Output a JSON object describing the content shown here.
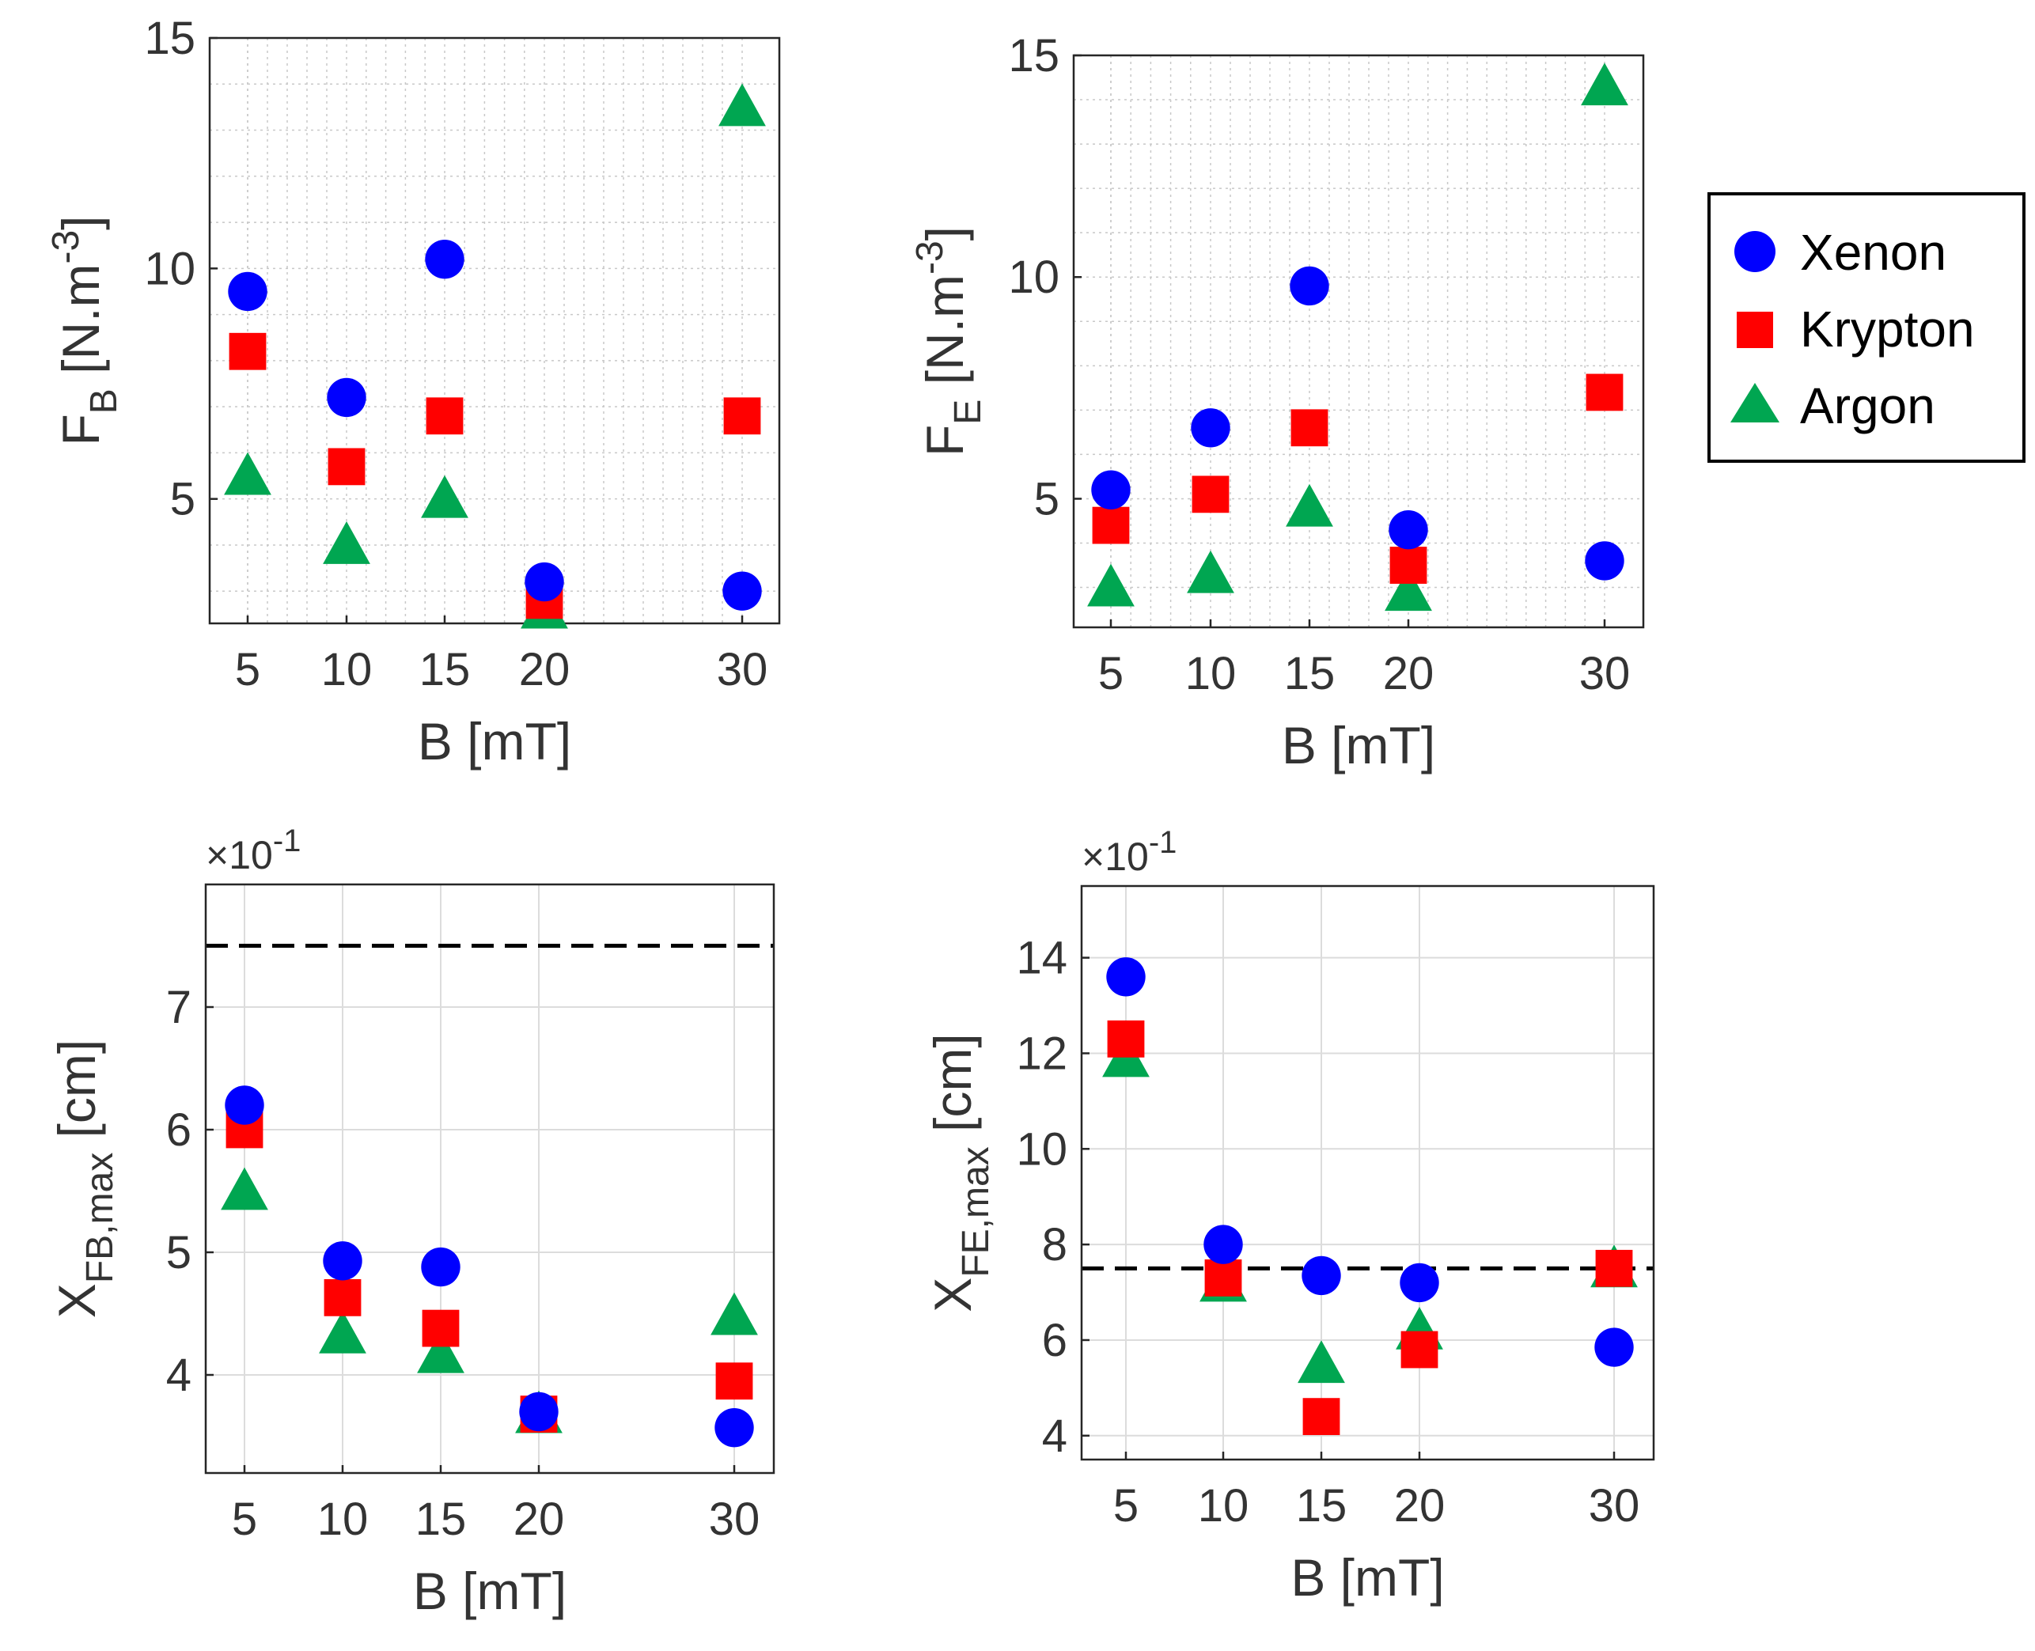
{
  "legend": {
    "entries": [
      {
        "name": "Xenon",
        "color": "#0000ff",
        "marker": "circle"
      },
      {
        "name": "Krypton",
        "color": "#ff0000",
        "marker": "square"
      },
      {
        "name": "Argon",
        "color": "#00a651",
        "marker": "triangle"
      }
    ],
    "placement": "right"
  },
  "chart_data": [
    {
      "type": "scatter",
      "position": "top-left",
      "xlabel": "B [mT]",
      "ylabel": {
        "main": "F",
        "sub": "B",
        "rest": " [N.m",
        "sup": "-3",
        "close": "]"
      },
      "exponent": "",
      "x_ticks": [
        5,
        10,
        15,
        20,
        30
      ],
      "x_tick_labels": [
        "5",
        "10",
        "15",
        "20",
        "30"
      ],
      "y_ticks": [
        5,
        10,
        15
      ],
      "y_tick_labels": [
        "5",
        "10",
        "15"
      ],
      "xlim": [
        3,
        31
      ],
      "ylim": [
        2.3,
        15
      ],
      "grid": "minor-dotted",
      "reference_line": null,
      "series": [
        {
          "name": "Xenon",
          "x": [
            5,
            10,
            15,
            20,
            30
          ],
          "y": [
            9.5,
            7.2,
            10.2,
            3.2,
            3.0
          ]
        },
        {
          "name": "Krypton",
          "x": [
            5,
            10,
            15,
            20,
            30
          ],
          "y": [
            8.2,
            5.7,
            6.8,
            2.8,
            6.8
          ]
        },
        {
          "name": "Argon",
          "x": [
            5,
            10,
            15,
            20,
            30
          ],
          "y": [
            5.5,
            4.0,
            5.0,
            2.6,
            13.5
          ]
        }
      ]
    },
    {
      "type": "scatter",
      "position": "top-right",
      "xlabel": "B [mT]",
      "ylabel": {
        "main": "F",
        "sub": "E",
        "rest": " [N.m",
        "sup": "-3",
        "close": "]"
      },
      "exponent": "",
      "x_ticks": [
        5,
        10,
        15,
        20,
        30
      ],
      "x_tick_labels": [
        "5",
        "10",
        "15",
        "20",
        "30"
      ],
      "y_ticks": [
        5,
        10,
        15
      ],
      "y_tick_labels": [
        "5",
        "10",
        "15"
      ],
      "xlim": [
        3,
        31
      ],
      "ylim": [
        2.1,
        15
      ],
      "grid": "minor-dotted",
      "reference_line": null,
      "series": [
        {
          "name": "Xenon",
          "x": [
            5,
            10,
            15,
            20,
            30
          ],
          "y": [
            5.2,
            6.6,
            9.8,
            4.3,
            3.6
          ]
        },
        {
          "name": "Krypton",
          "x": [
            5,
            10,
            15,
            20,
            30
          ],
          "y": [
            4.4,
            5.1,
            6.6,
            3.5,
            7.4
          ]
        },
        {
          "name": "Argon",
          "x": [
            5,
            10,
            15,
            20,
            30
          ],
          "y": [
            3.0,
            3.3,
            4.8,
            2.9,
            14.3
          ]
        }
      ]
    },
    {
      "type": "scatter",
      "position": "bottom-left",
      "xlabel": "B [mT]",
      "ylabel": {
        "main": "X",
        "sub": "FB,max",
        "rest": " [cm]",
        "sup": "",
        "close": ""
      },
      "exponent": "10",
      "exponent_prefix": "×",
      "exponent_power": "-1",
      "x_ticks": [
        5,
        10,
        15,
        20,
        30
      ],
      "x_tick_labels": [
        "5",
        "10",
        "15",
        "20",
        "30"
      ],
      "y_ticks": [
        4,
        5,
        6,
        7
      ],
      "y_tick_labels": [
        "4",
        "5",
        "6",
        "7"
      ],
      "xlim": [
        3,
        31
      ],
      "ylim": [
        3.2,
        8.0
      ],
      "grid": "major",
      "reference_line": {
        "y": 7.5,
        "style": "dashed"
      },
      "series": [
        {
          "name": "Xenon",
          "x": [
            5,
            10,
            15,
            20,
            30
          ],
          "y": [
            6.2,
            4.93,
            4.88,
            3.7,
            3.57
          ]
        },
        {
          "name": "Krypton",
          "x": [
            5,
            10,
            15,
            20,
            30
          ],
          "y": [
            6.0,
            4.63,
            4.38,
            3.68,
            3.95
          ]
        },
        {
          "name": "Argon",
          "x": [
            5,
            10,
            15,
            20,
            30
          ],
          "y": [
            5.5,
            4.33,
            4.17,
            3.68,
            4.48
          ]
        }
      ]
    },
    {
      "type": "scatter",
      "position": "bottom-right",
      "xlabel": "B [mT]",
      "ylabel": {
        "main": "X",
        "sub": "FE,max",
        "rest": " [cm]",
        "sup": "",
        "close": ""
      },
      "exponent": "10",
      "exponent_prefix": "×",
      "exponent_power": "-1",
      "x_ticks": [
        5,
        10,
        15,
        20,
        30
      ],
      "x_tick_labels": [
        "5",
        "10",
        "15",
        "20",
        "30"
      ],
      "y_ticks": [
        4,
        6,
        8,
        10,
        12,
        14
      ],
      "y_tick_labels": [
        "4",
        "6",
        "8",
        "10",
        "12",
        "14"
      ],
      "xlim": [
        3,
        31
      ],
      "ylim": [
        3.5,
        15.5
      ],
      "grid": "major",
      "reference_line": {
        "y": 7.5,
        "style": "dashed"
      },
      "series": [
        {
          "name": "Xenon",
          "x": [
            5,
            10,
            15,
            20,
            30
          ],
          "y": [
            13.6,
            8.0,
            7.35,
            7.2,
            5.85
          ]
        },
        {
          "name": "Krypton",
          "x": [
            5,
            10,
            15,
            20,
            30
          ],
          "y": [
            12.3,
            7.3,
            4.4,
            5.8,
            7.5
          ]
        },
        {
          "name": "Argon",
          "x": [
            5,
            10,
            15,
            20,
            30
          ],
          "y": [
            11.9,
            7.2,
            5.5,
            6.2,
            7.5
          ]
        }
      ]
    }
  ]
}
